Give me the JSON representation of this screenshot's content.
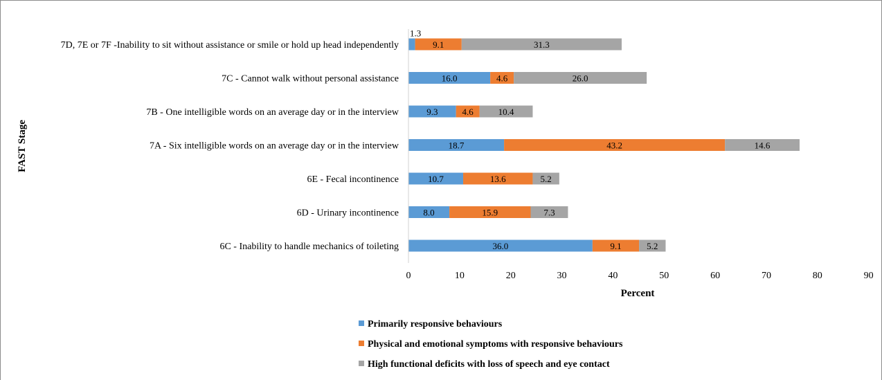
{
  "chart_data": {
    "type": "bar",
    "orientation": "horizontal",
    "stacked": true,
    "xlabel": "Percent",
    "ylabel": "FAST Stage",
    "xlim": [
      0,
      90
    ],
    "x_ticks": [
      0,
      10,
      20,
      30,
      40,
      50,
      60,
      70,
      80,
      90
    ],
    "grid": false,
    "legend_position": "bottom",
    "categories": [
      "7D, 7E or 7F -Inability to sit without assistance or smile or hold up head independently",
      "7C - Cannot walk without personal assistance",
      "7B - One intelligible words on an average day or in the interview",
      "7A - Six intelligible words on an average day or in the interview",
      "6E - Fecal incontinence",
      "6D - Urinary incontinence",
      "6C - Inability to handle mechanics of toileting"
    ],
    "series": [
      {
        "name": "Primarily responsive behaviours",
        "color": "#5b9bd5",
        "values": [
          1.3,
          16.0,
          9.3,
          18.7,
          10.7,
          8.0,
          36.0
        ]
      },
      {
        "name": "Physical and emotional symptoms with responsive behaviours",
        "color": "#ed7d31",
        "values": [
          9.1,
          4.6,
          4.6,
          43.2,
          13.6,
          15.9,
          9.1
        ]
      },
      {
        "name": "High functional deficits with loss of speech and eye contact",
        "color": "#a5a5a5",
        "values": [
          31.3,
          26.0,
          10.4,
          14.6,
          5.2,
          7.3,
          5.2
        ]
      }
    ],
    "data_labels": [
      [
        "1.3",
        "9.1",
        "31.3"
      ],
      [
        "16.0",
        "4.6",
        "26.0"
      ],
      [
        "9.3",
        "4.6",
        "10.4"
      ],
      [
        "18.7",
        "43.2",
        "14.6"
      ],
      [
        "10.7",
        "13.6",
        "5.2"
      ],
      [
        "8.0",
        "15.9",
        "7.3"
      ],
      [
        "36.0",
        "9.1",
        "5.2"
      ]
    ]
  }
}
